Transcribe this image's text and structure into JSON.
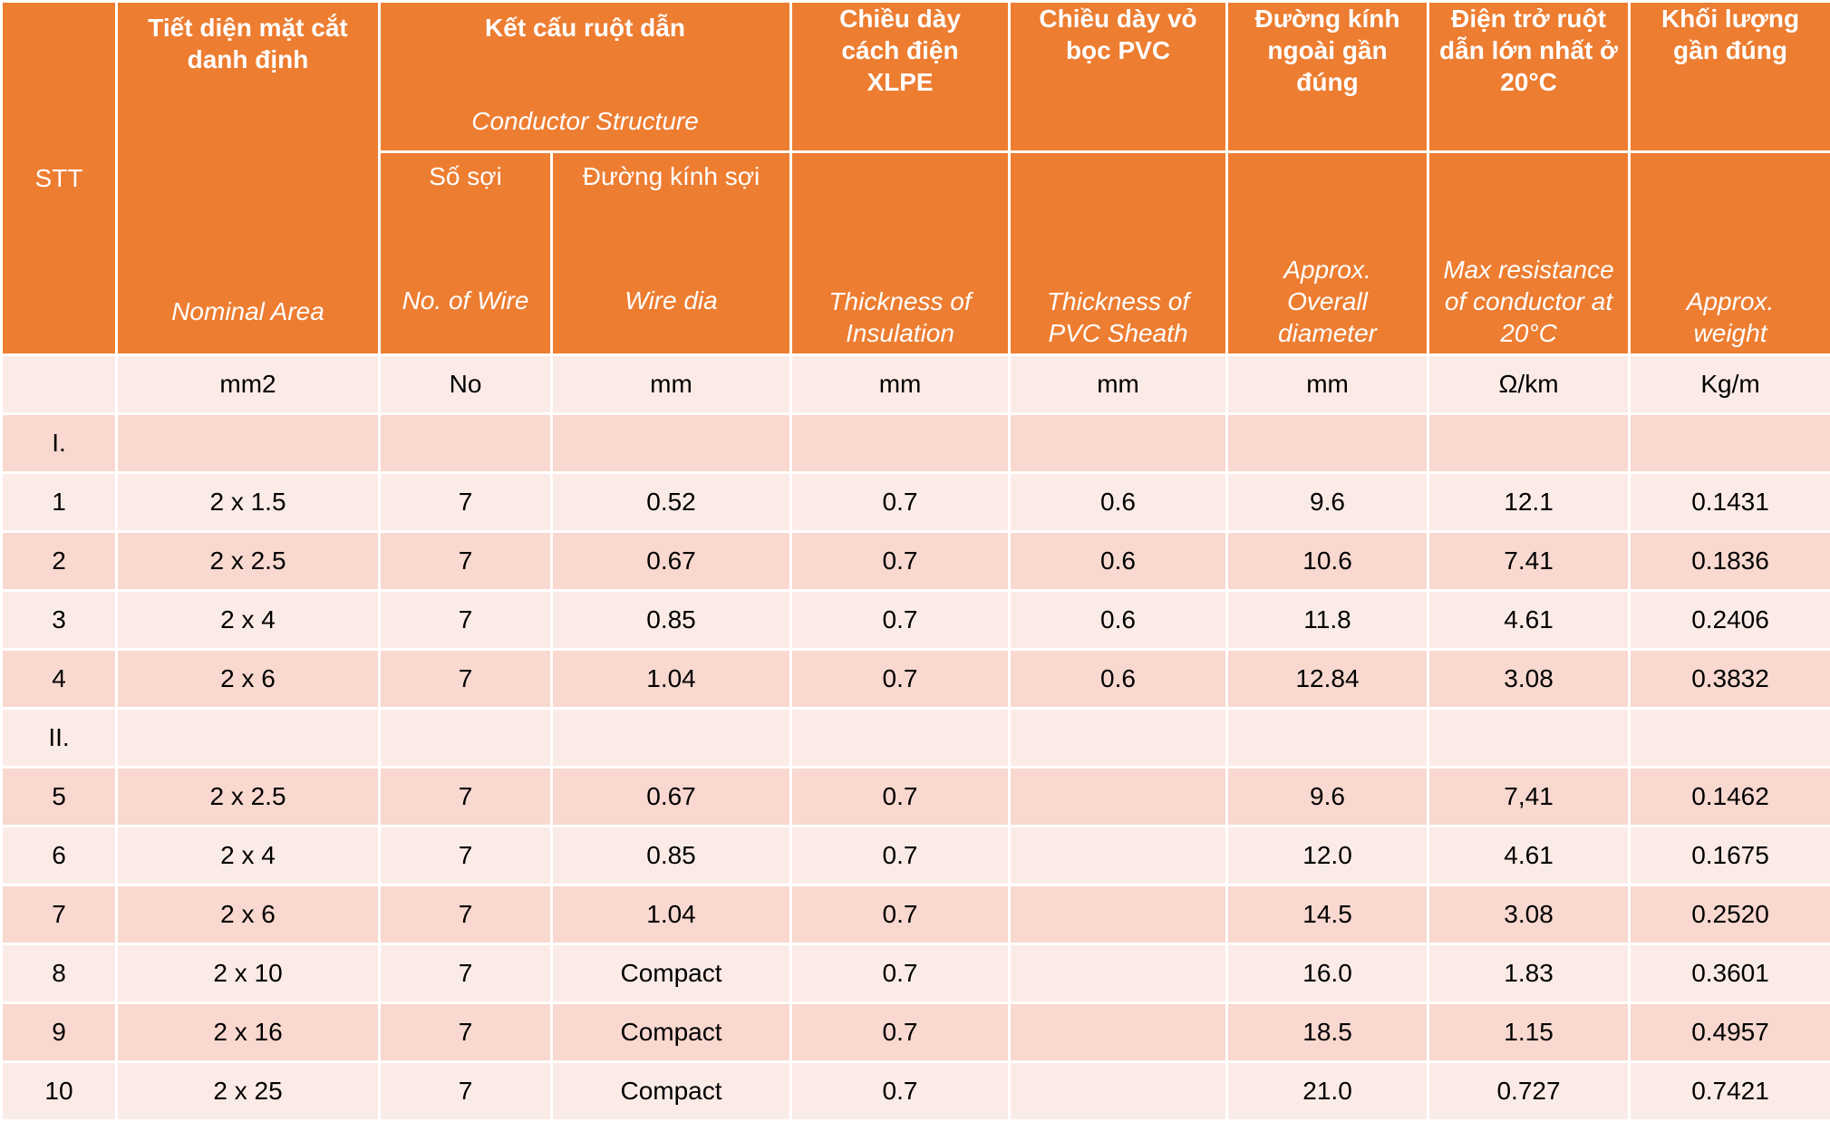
{
  "header": {
    "stt": "STT",
    "nominal_area": {
      "vi": "Tiết diện mặt cắt danh định",
      "en": "Nominal Area"
    },
    "conductor_structure": {
      "vi": "Kết cấu ruột dẫn",
      "en": "Conductor Structure"
    },
    "no_of_wire": {
      "vi": "Số sợi",
      "en": "No. of Wire"
    },
    "wire_dia": {
      "vi": "Đường kính sợi",
      "en": "Wire dia"
    },
    "insulation": {
      "vi": "Chiều dày cách điện XLPE",
      "en": "Thickness of Insulation"
    },
    "sheath": {
      "vi": "Chiều dày vỏ bọc PVC",
      "en": "Thickness of PVC Sheath"
    },
    "diameter": {
      "vi": "Đường kính ngoài gần đúng",
      "en": "Approx. Overall diameter"
    },
    "resistance": {
      "vi": "Điện trở ruột dẫn lớn nhất ở 20°C",
      "en": "Max resistance of conductor at 20°C"
    },
    "weight": {
      "vi": "Khối lượng gần đúng",
      "en": "Approx. weight"
    }
  },
  "units": [
    "",
    "mm2",
    "No",
    "mm",
    "mm",
    "mm",
    "mm",
    "Ω/km",
    "Kg/m"
  ],
  "rows": [
    [
      "I.",
      "",
      "",
      "",
      "",
      "",
      "",
      "",
      ""
    ],
    [
      "1",
      "2 x 1.5",
      "7",
      "0.52",
      "0.7",
      "0.6",
      "9.6",
      "12.1",
      "0.1431"
    ],
    [
      "2",
      "2 x 2.5",
      "7",
      "0.67",
      "0.7",
      "0.6",
      "10.6",
      "7.41",
      "0.1836"
    ],
    [
      "3",
      "2 x 4",
      "7",
      "0.85",
      "0.7",
      "0.6",
      "11.8",
      "4.61",
      "0.2406"
    ],
    [
      "4",
      "2 x 6",
      "7",
      "1.04",
      "0.7",
      "0.6",
      "12.84",
      "3.08",
      "0.3832"
    ],
    [
      "II.",
      "",
      "",
      "",
      "",
      "",
      "",
      "",
      ""
    ],
    [
      "5",
      "2 x 2.5",
      "7",
      "0.67",
      "0.7",
      "",
      "9.6",
      "7,41",
      "0.1462"
    ],
    [
      "6",
      "2 x 4",
      "7",
      "0.85",
      "0.7",
      "",
      "12.0",
      "4.61",
      "0.1675"
    ],
    [
      "7",
      "2 x 6",
      "7",
      "1.04",
      "0.7",
      "",
      "14.5",
      "3.08",
      "0.2520"
    ],
    [
      "8",
      "2 x 10",
      "7",
      "Compact",
      "0.7",
      "",
      "16.0",
      "1.83",
      "0.3601"
    ],
    [
      "9",
      "2 x 16",
      "7",
      "Compact",
      "0.7",
      "",
      "18.5",
      "1.15",
      "0.4957"
    ],
    [
      "10",
      "2 x 25",
      "7",
      "Compact",
      "0.7",
      "",
      "21.0",
      "0.727",
      "0.7421"
    ]
  ]
}
